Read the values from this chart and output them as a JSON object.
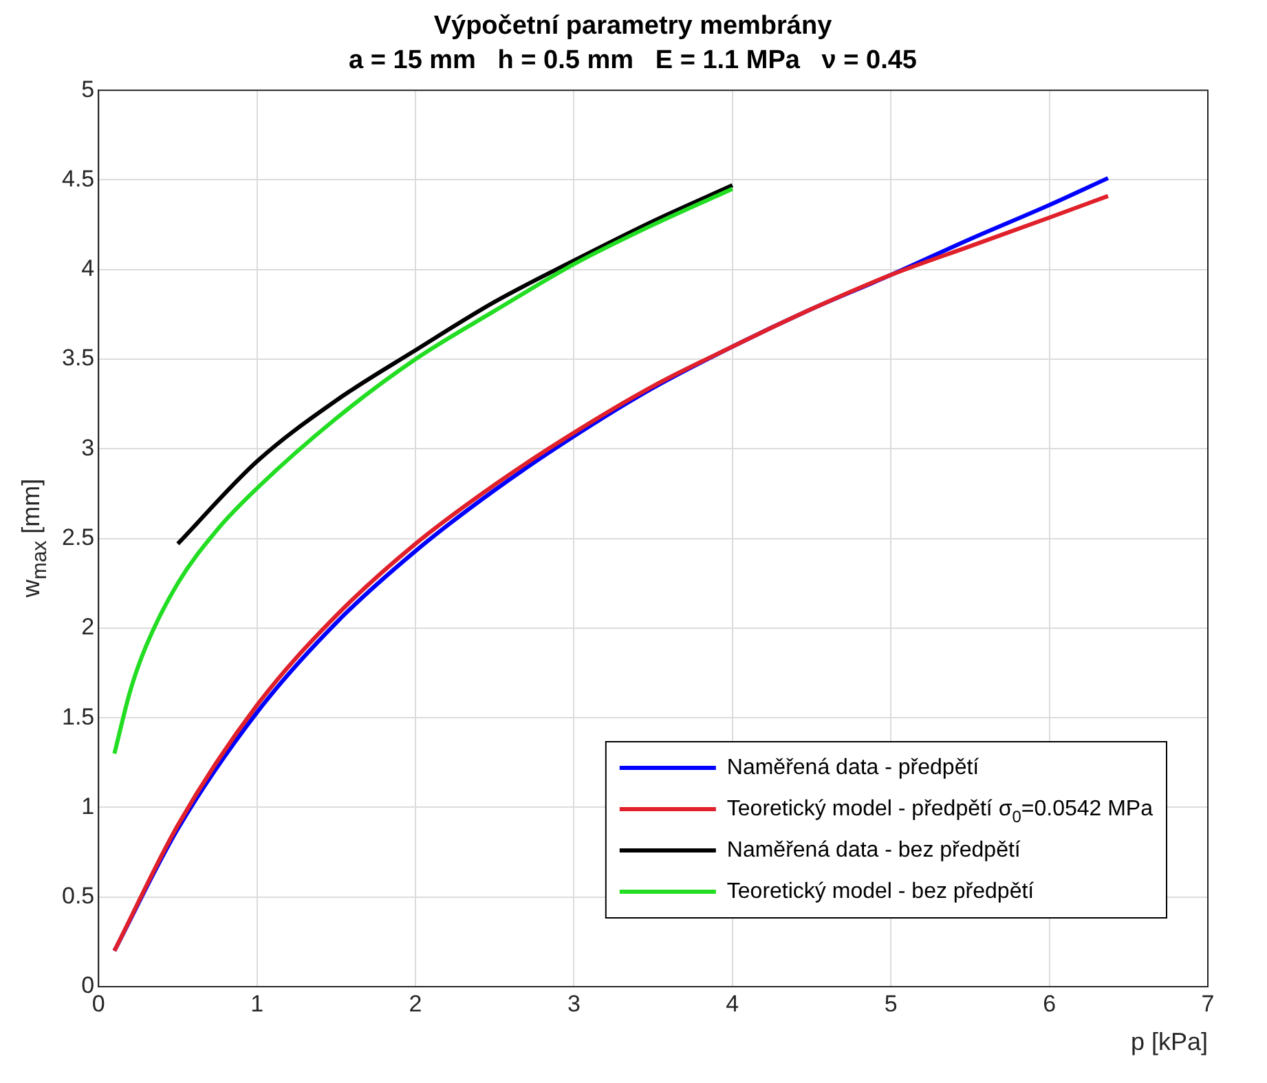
{
  "chart_data": {
    "type": "line",
    "title": "Výpočetní parametry membrány",
    "subtitle": "a = 15 mm   h = 0.5 mm   E = 1.1 MPa   ν = 0.45",
    "xlabel": "p [kPa]",
    "ylabel": "w$_{max}$ [mm]",
    "xlim": [
      0,
      7
    ],
    "xticks": [
      0,
      1,
      2,
      3,
      4,
      5,
      6,
      7
    ],
    "ylim": [
      0,
      5
    ],
    "yticks": [
      0,
      0.5,
      1,
      1.5,
      2,
      2.5,
      3,
      3.5,
      4,
      4.5,
      5
    ],
    "grid": true,
    "legend": "bottom right",
    "marker": "none",
    "line_style": "solid",
    "series": [
      {
        "name": "Naměřená data - předpětí",
        "color": "#0000ff",
        "x": [
          0.1,
          0.5,
          1,
          1.5,
          2,
          2.5,
          3,
          3.5,
          4,
          4.5,
          5,
          5.5,
          6,
          6.37
        ],
        "values": [
          0.2,
          0.88,
          1.53,
          2.03,
          2.43,
          2.77,
          3.07,
          3.34,
          3.57,
          3.78,
          3.97,
          4.17,
          4.36,
          4.51
        ]
      },
      {
        "name": "Teoretický model - předpětí σ$_{0}$=0.0542 MPa",
        "color": "#e0202a",
        "x": [
          0.1,
          0.5,
          1,
          1.5,
          2,
          2.5,
          3,
          3.5,
          4,
          4.5,
          5,
          5.5,
          6,
          6.37
        ],
        "values": [
          0.2,
          0.9,
          1.57,
          2.07,
          2.47,
          2.8,
          3.09,
          3.35,
          3.57,
          3.78,
          3.97,
          4.13,
          4.29,
          4.41
        ]
      },
      {
        "name": "Naměřená data - bez předpětí",
        "color": "#000000",
        "x": [
          0.5,
          1,
          1.5,
          2,
          2.5,
          3,
          3.5,
          4
        ],
        "values": [
          2.47,
          2.93,
          3.27,
          3.55,
          3.82,
          4.05,
          4.27,
          4.47
        ]
      },
      {
        "name": "Teoretický model - bez předpětí",
        "color": "#22dd22",
        "x": [
          0.1,
          0.2,
          0.3,
          0.5,
          0.75,
          1,
          1.5,
          2,
          2.5,
          3,
          3.5,
          4
        ],
        "values": [
          1.3,
          1.65,
          1.9,
          2.25,
          2.55,
          2.78,
          3.17,
          3.5,
          3.77,
          4.03,
          4.25,
          4.45
        ]
      }
    ]
  }
}
